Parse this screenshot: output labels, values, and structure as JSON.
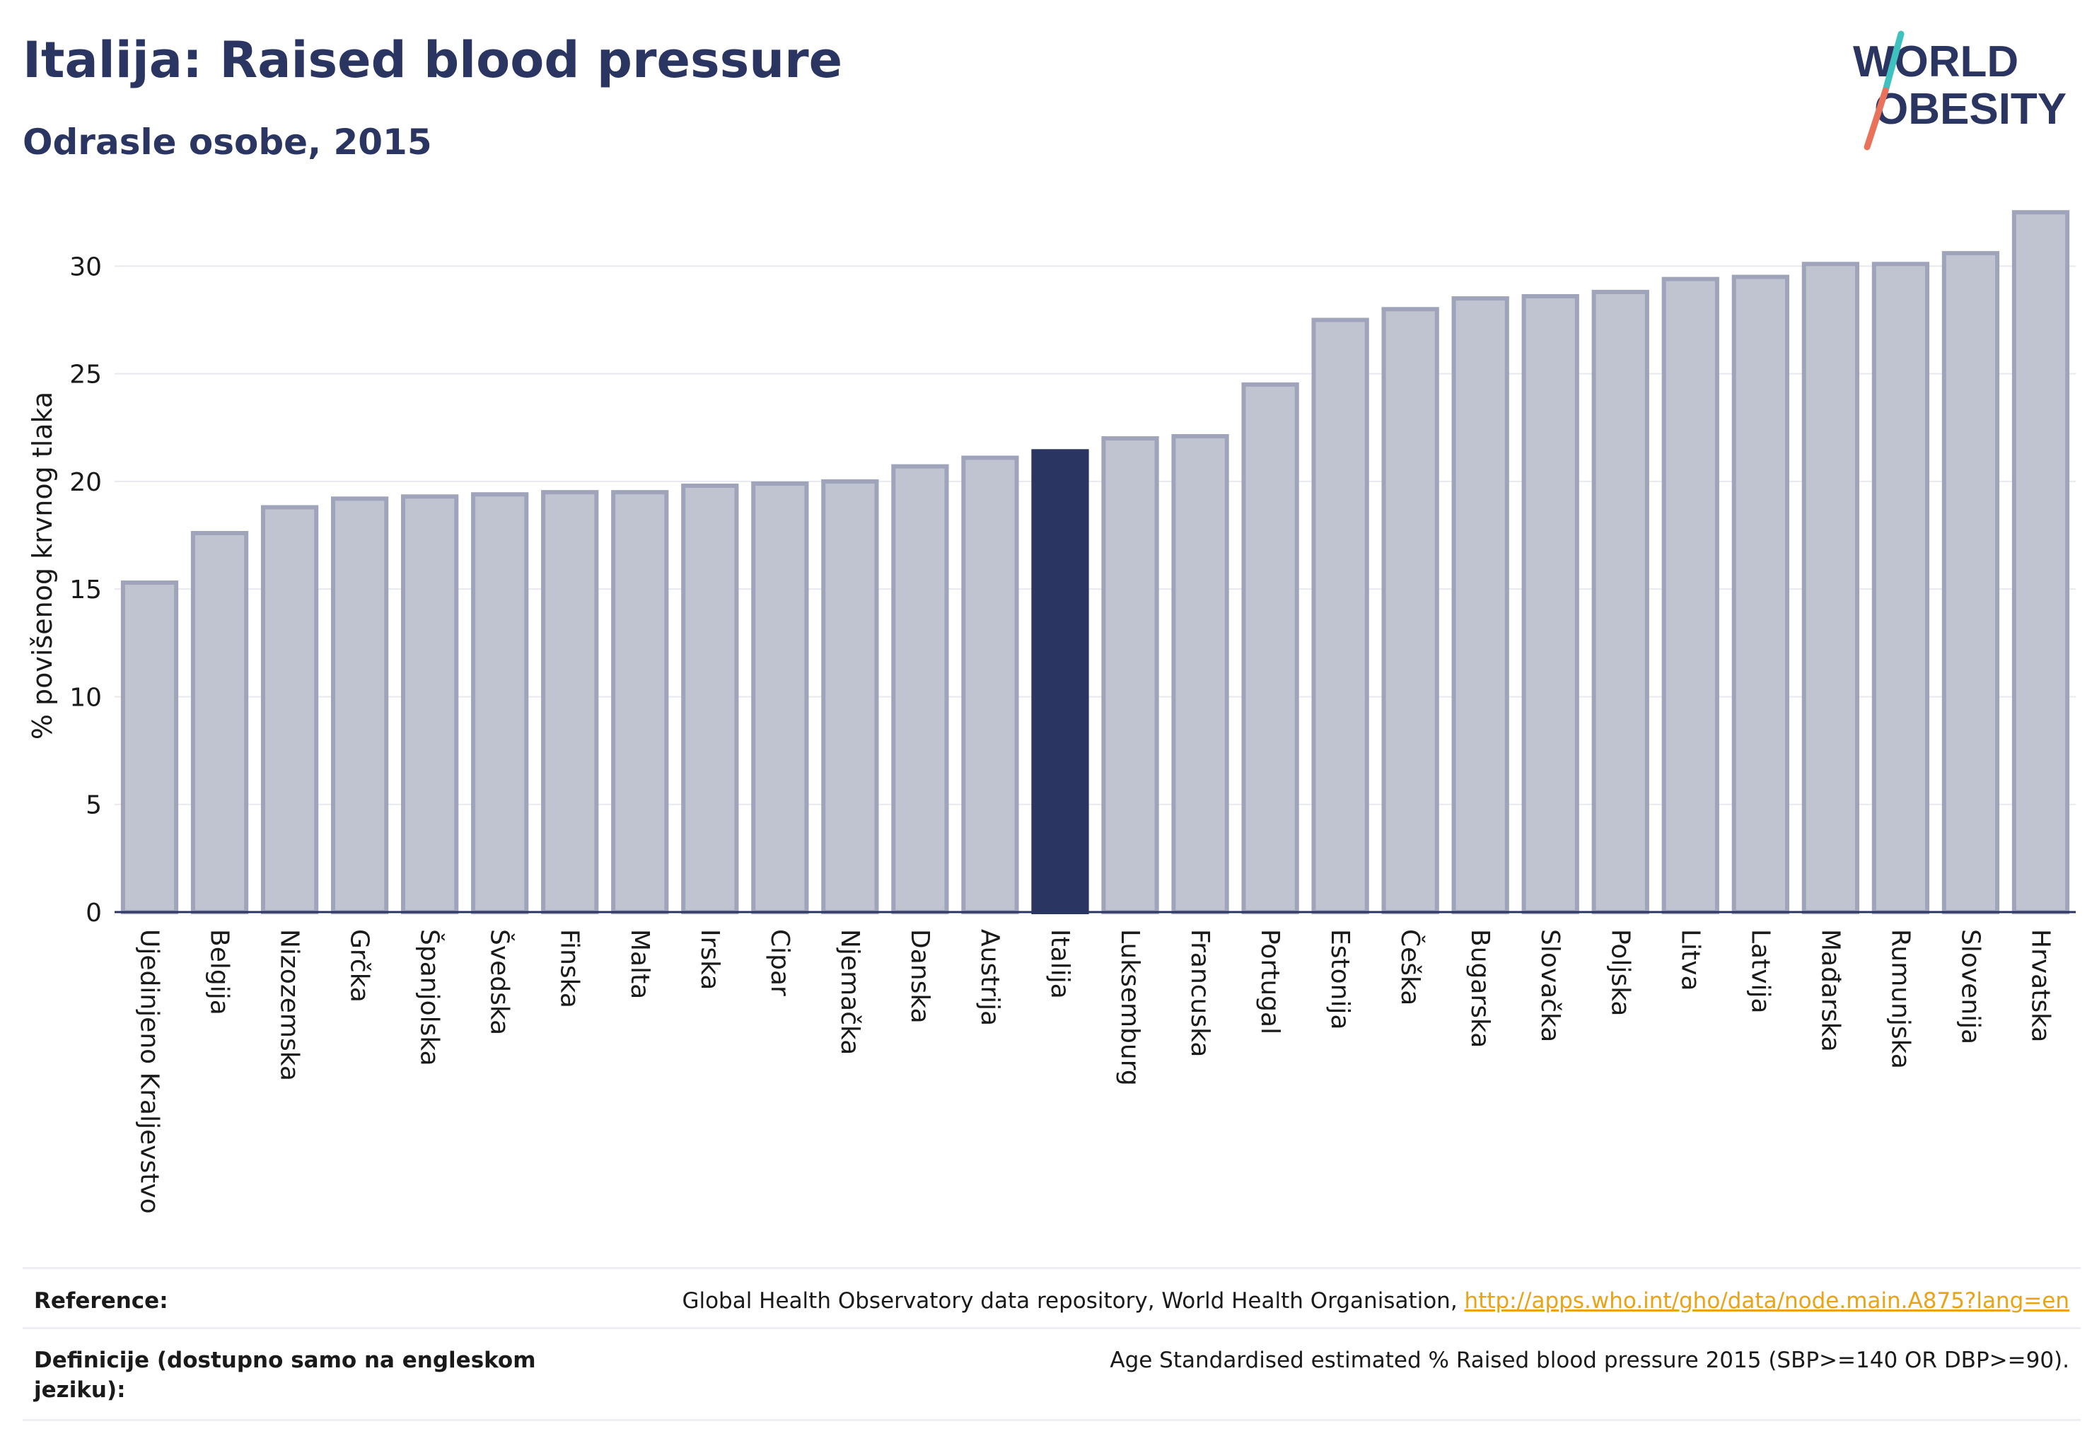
{
  "header": {
    "title": "Italija: Raised blood pressure",
    "subtitle": "Odrasle osobe, 2015"
  },
  "logo": {
    "line1": "WORLD",
    "line2": "OBESITY"
  },
  "colors": {
    "bar": "#c0c3d0",
    "bar_border": "#9fa4bb",
    "highlight": "#2b3561",
    "title": "#2b3561",
    "link": "#e8a317"
  },
  "chart_data": {
    "type": "bar",
    "ylabel": "% povišenog krvnog tlaka",
    "ylim": [
      0,
      33
    ],
    "yticks": [
      0,
      5,
      10,
      15,
      20,
      25,
      30
    ],
    "grid": true,
    "highlight_category": "Italija",
    "categories": [
      "Ujedinjeno Kraljevstvo",
      "Belgija",
      "Nizozemska",
      "Grčka",
      "Španjolska",
      "Švedska",
      "Finska",
      "Malta",
      "Irska",
      "Cipar",
      "Njemačka",
      "Danska",
      "Austrija",
      "Italija",
      "Luksemburg",
      "Francuska",
      "Portugal",
      "Estonija",
      "Češka",
      "Bugarska",
      "Slovačka",
      "Poljska",
      "Litva",
      "Latvija",
      "Mađarska",
      "Rumunjska",
      "Slovenija",
      "Hrvatska"
    ],
    "values": [
      15.3,
      17.6,
      18.8,
      19.2,
      19.3,
      19.4,
      19.5,
      19.5,
      19.8,
      19.9,
      20.0,
      20.7,
      21.1,
      21.4,
      22.0,
      22.1,
      24.5,
      27.5,
      28.0,
      28.5,
      28.6,
      28.8,
      29.4,
      29.5,
      30.1,
      30.1,
      30.6,
      32.5
    ]
  },
  "reference": {
    "label": "Reference:",
    "source": "Global Health Observatory data repository, World Health Organisation, ",
    "link": "http://apps.who.int/gho/data/node.main.A875?lang=en"
  },
  "definition": {
    "label": "Definicije (dostupno samo na engleskom jeziku):",
    "value": "Age Standardised estimated % Raised blood pressure 2015 (SBP>=140 OR DBP>=90)."
  }
}
